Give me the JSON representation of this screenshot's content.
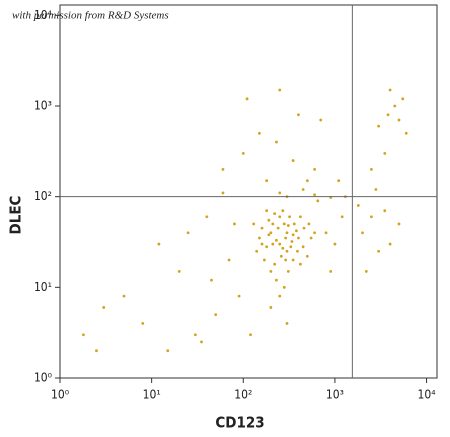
{
  "chart_data": {
    "type": "scatter",
    "annotation": "with permission from R&D Systems",
    "x_label": "CD123",
    "y_label": "DLEC",
    "log_x": true,
    "log_y": true,
    "color": "#d4a21c",
    "gate_color": "#666666",
    "gates": {
      "x": 1550,
      "y": 100
    },
    "xlim": [
      1,
      13000
    ],
    "ylim": [
      1,
      13000
    ],
    "xticks": [
      {
        "value": 1,
        "label": "10⁰"
      },
      {
        "value": 10,
        "label": "10¹"
      },
      {
        "value": 100,
        "label": "10²"
      },
      {
        "value": 1000,
        "label": "10³"
      },
      {
        "value": 10000,
        "label": "10⁴"
      }
    ],
    "yticks": [
      {
        "value": 1,
        "label": "10⁰"
      },
      {
        "value": 10,
        "label": "10¹"
      },
      {
        "value": 100,
        "label": "10²"
      },
      {
        "value": 1000,
        "label": "10³"
      },
      {
        "value": 10000,
        "label": "10⁴"
      }
    ],
    "x": [
      250,
      300,
      200,
      350,
      180,
      280,
      400,
      220,
      320,
      150,
      260,
      450,
      190,
      310,
      240,
      380,
      170,
      290,
      500,
      210,
      330,
      270,
      160,
      420,
      230,
      360,
      140,
      300,
      550,
      250,
      200,
      340,
      280,
      190,
      460,
      130,
      270,
      390,
      220,
      600,
      310,
      250,
      180,
      350,
      230,
      420,
      160,
      290,
      520,
      210,
      40,
      20,
      8,
      60,
      100,
      500,
      800,
      90,
      30,
      12,
      150,
      400,
      250,
      70,
      120,
      300,
      600,
      1000,
      50,
      15,
      5,
      2.5,
      180,
      350,
      700,
      80,
      45,
      200,
      1200,
      900,
      25,
      3,
      110,
      450,
      1.8,
      230,
      650,
      35,
      1100,
      60,
      3000,
      4500,
      5000,
      3500,
      4000,
      2500,
      6000,
      3800,
      2800,
      5500,
      2000,
      3000,
      2500,
      4000,
      1800,
      5000,
      2200,
      3500,
      300,
      600,
      900,
      250,
      1300
    ],
    "values": [
      30,
      25,
      40,
      20,
      28,
      50,
      35,
      18,
      60,
      35,
      22,
      28,
      55,
      15,
      45,
      42,
      20,
      35,
      22,
      30,
      28,
      70,
      45,
      18,
      12,
      50,
      25,
      40,
      35,
      60,
      15,
      32,
      10,
      38,
      45,
      50,
      27,
      25,
      65,
      40,
      48,
      8,
      70,
      38,
      33,
      60,
      30,
      20,
      50,
      50,
      60,
      15,
      4,
      200,
      300,
      150,
      40,
      8,
      3,
      30,
      500,
      800,
      1500,
      20,
      3,
      4,
      200,
      30,
      5,
      2,
      8,
      2,
      150,
      250,
      700,
      50,
      12,
      6,
      60,
      15,
      40,
      6,
      1200,
      120,
      3,
      400,
      90,
      2.5,
      150,
      110,
      600,
      1000,
      700,
      300,
      1500,
      200,
      500,
      800,
      120,
      1200,
      40,
      25,
      60,
      30,
      80,
      50,
      15,
      70,
      100,
      105,
      98,
      110,
      100
    ]
  }
}
